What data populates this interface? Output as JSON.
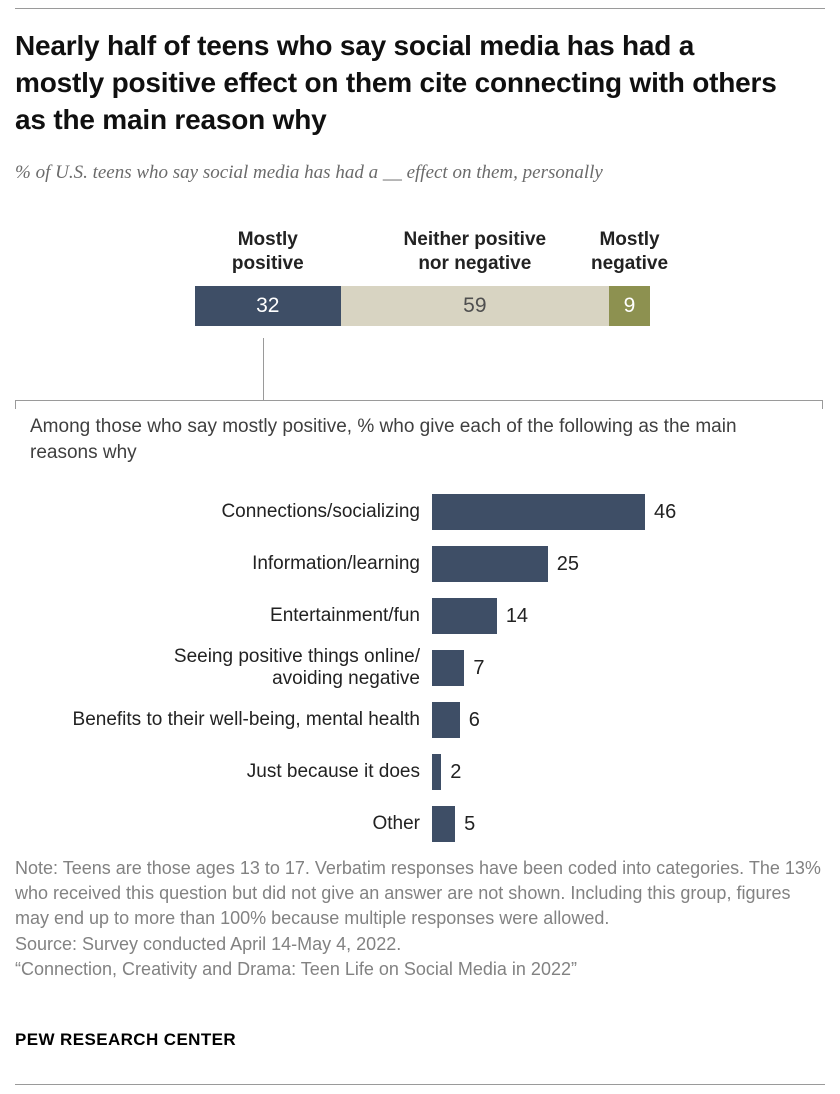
{
  "header": {
    "title": "Nearly half of teens who say social media has had a mostly positive effect on them cite connecting with others as the main reason why",
    "subtitle": "% of U.S. teens who say social media has had a __ effect on them, personally"
  },
  "stacked_chart": {
    "segments": [
      {
        "label": "Mostly\npositive",
        "value": 32,
        "color": "#3e4e66",
        "text_color": "#ffffff"
      },
      {
        "label": "Neither positive\nnor negative",
        "value": 59,
        "color": "#d8d4c2",
        "text_color": "#4f4f4f"
      },
      {
        "label": "Mostly\nnegative",
        "value": 9,
        "color": "#8d9150",
        "text_color": "#ffffff"
      }
    ]
  },
  "breakdown_chart": {
    "intro": "Among those who say mostly positive, % who give each of the following as the main reasons why",
    "bar_color": "#3e4e66",
    "rows": [
      {
        "label": "Connections/socializing",
        "value": 46
      },
      {
        "label": "Information/learning",
        "value": 25
      },
      {
        "label": "Entertainment/fun",
        "value": 14
      },
      {
        "label": "Seeing positive things online/\navoiding negative",
        "value": 7
      },
      {
        "label": "Benefits to their well-being, mental health",
        "value": 6
      },
      {
        "label": "Just because it does",
        "value": 2
      },
      {
        "label": "Other",
        "value": 5
      }
    ]
  },
  "footer": {
    "note": "Note: Teens are those ages 13 to 17. Verbatim responses have been coded into categories. The 13% who received this question but did not give an answer are not shown. Including this group, figures may end up to more than 100% because multiple responses were allowed.",
    "source": "Source: Survey conducted April 14-May 4, 2022.",
    "report": "“Connection, Creativity and Drama: Teen Life on Social Media in 2022”",
    "brand": "PEW RESEARCH CENTER"
  },
  "chart_data": [
    {
      "type": "bar",
      "subtype": "stacked-horizontal",
      "title": "% of U.S. teens who say social media has had a __ effect on them, personally",
      "categories": [
        "Mostly positive",
        "Neither positive nor negative",
        "Mostly negative"
      ],
      "values": [
        32,
        59,
        9
      ],
      "colors": [
        "#3e4e66",
        "#d8d4c2",
        "#8d9150"
      ],
      "xlim": [
        0,
        100
      ],
      "grid": false,
      "legend": "labels above segments"
    },
    {
      "type": "bar",
      "subtype": "horizontal",
      "title": "Among those who say mostly positive, % who give each of the following as the main reasons why",
      "categories": [
        "Connections/socializing",
        "Information/learning",
        "Entertainment/fun",
        "Seeing positive things online/avoiding negative",
        "Benefits to their well-being, mental health",
        "Just because it does",
        "Other"
      ],
      "values": [
        46,
        25,
        14,
        7,
        6,
        2,
        5
      ],
      "xlim": [
        0,
        50
      ],
      "grid": false,
      "value_labels": "end of bar"
    }
  ]
}
